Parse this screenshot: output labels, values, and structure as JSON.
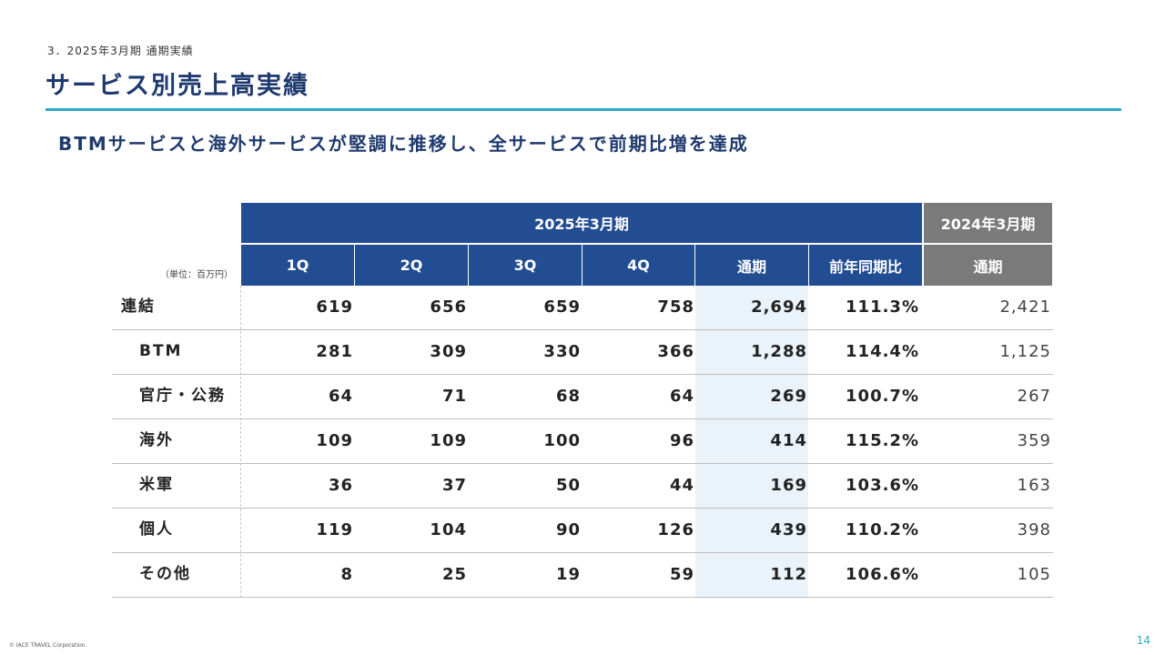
{
  "header": {
    "section": "3．2025年3月期 通期実績",
    "title": "サービス別売上高実績",
    "subtitle": "BTMサービスと海外サービスが堅調に推移し、全サービスで前期比増を達成"
  },
  "table": {
    "unit_note": "（単位：百万円）",
    "group_current": "2025年3月期",
    "group_previous": "2024年3月期",
    "columns": [
      "1Q",
      "2Q",
      "3Q",
      "4Q",
      "通期",
      "前年同期比",
      "通期"
    ],
    "rows": [
      {
        "label": "連結",
        "values": [
          "619",
          "656",
          "659",
          "758",
          "2,694",
          "111.3%",
          "2,421"
        ]
      },
      {
        "label": "BTM",
        "values": [
          "281",
          "309",
          "330",
          "366",
          "1,288",
          "114.4%",
          "1,125"
        ]
      },
      {
        "label": "官庁・公務",
        "values": [
          "64",
          "71",
          "68",
          "64",
          "269",
          "100.7%",
          "267"
        ]
      },
      {
        "label": "海外",
        "values": [
          "109",
          "109",
          "100",
          "96",
          "414",
          "115.2%",
          "359"
        ]
      },
      {
        "label": "米軍",
        "values": [
          "36",
          "37",
          "50",
          "44",
          "169",
          "103.6%",
          "163"
        ]
      },
      {
        "label": "個人",
        "values": [
          "119",
          "104",
          "90",
          "126",
          "439",
          "110.2%",
          "398"
        ]
      },
      {
        "label": "その他",
        "values": [
          "8",
          "25",
          "19",
          "59",
          "112",
          "106.6%",
          "105"
        ]
      }
    ]
  },
  "colors": {
    "header_blue": "#234d92",
    "header_gray": "#7a7a7a",
    "accent_rule": "#2fa9c9",
    "title_navy": "#1f3a6e",
    "highlight_band": "#e9f3f9"
  },
  "footer": {
    "copyright": "© IACE TRAVEL Corporation.",
    "page_number": "14"
  }
}
